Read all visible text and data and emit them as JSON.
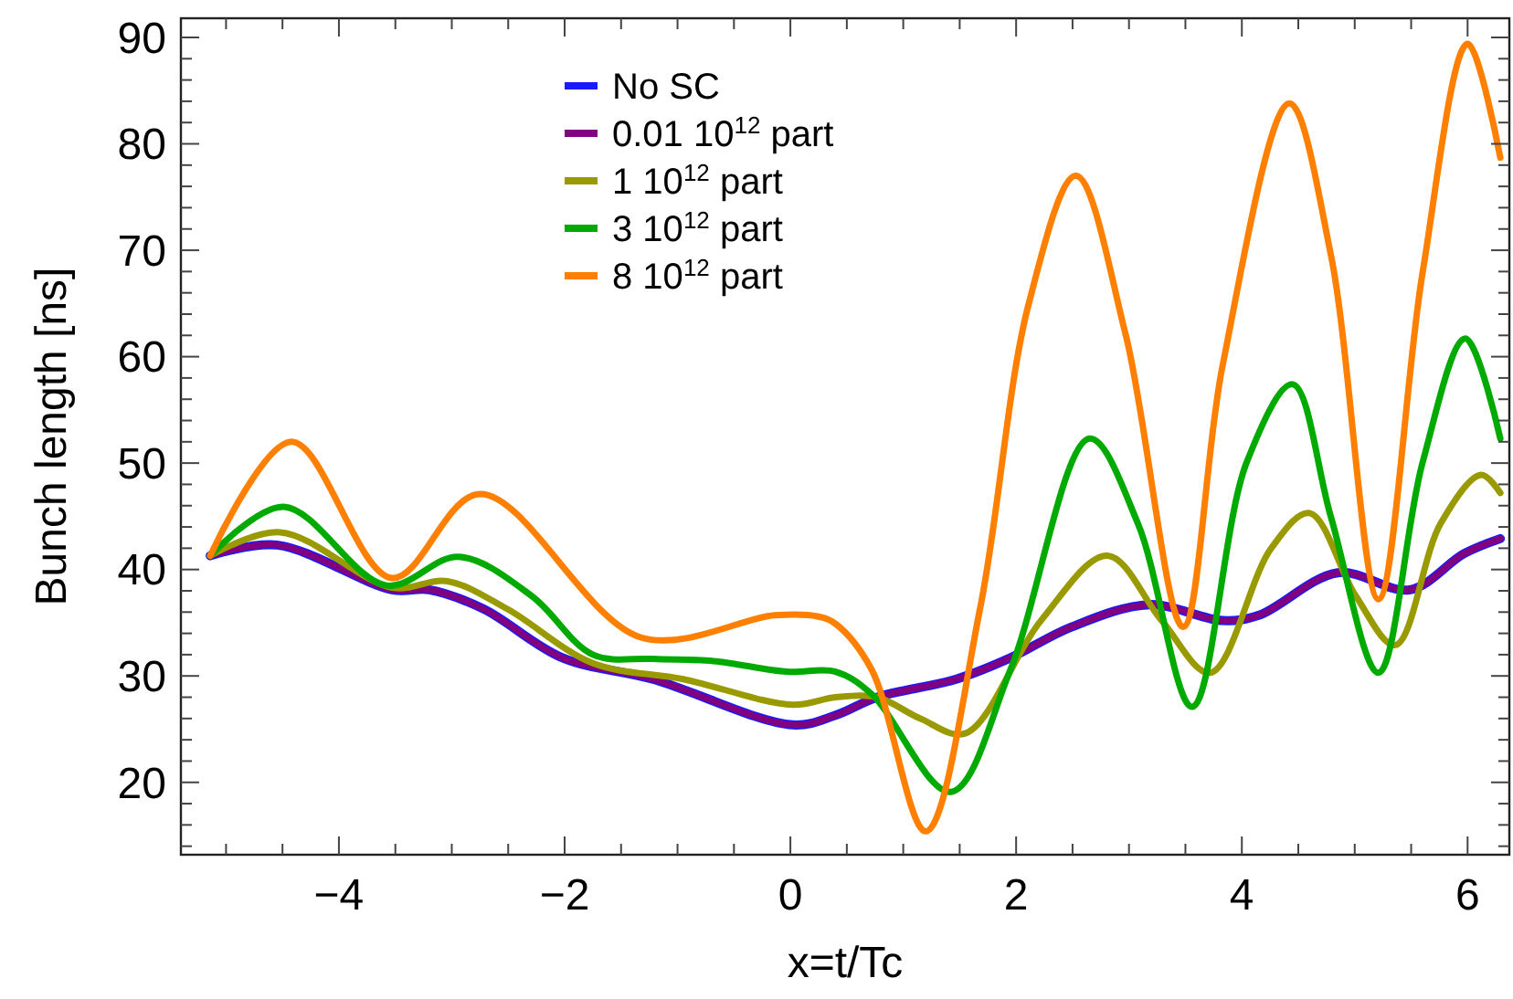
{
  "chart_data": {
    "type": "line",
    "xlabel": "x=t/Tc",
    "ylabel": "Bunch length [ns]",
    "xlim": [
      -5.4,
      6.37
    ],
    "ylim": [
      13.2,
      91.8
    ],
    "xticks": [
      {
        "value": -5,
        "label": null
      },
      {
        "value": -4.5,
        "label": null
      },
      -4,
      {
        "value": -3.5,
        "label": null
      },
      {
        "value": -3,
        "label": null
      },
      {
        "value": -2.5,
        "label": null
      },
      -2,
      {
        "value": -1.5,
        "label": null
      },
      {
        "value": -1,
        "label": null
      },
      {
        "value": -0.5,
        "label": null
      },
      0,
      {
        "value": 0.5,
        "label": null
      },
      {
        "value": 1,
        "label": null
      },
      {
        "value": 1.5,
        "label": null
      },
      2,
      {
        "value": 2.5,
        "label": null
      },
      {
        "value": 3,
        "label": null
      },
      {
        "value": 3.5,
        "label": null
      },
      4,
      {
        "value": 4.5,
        "label": null
      },
      {
        "value": 5,
        "label": null
      },
      {
        "value": 5.5,
        "label": null
      },
      6
    ],
    "yticks": [
      {
        "value": 14,
        "label": null
      },
      {
        "value": 16,
        "label": null
      },
      {
        "value": 18,
        "label": null
      },
      20,
      {
        "value": 22,
        "label": null
      },
      {
        "value": 24,
        "label": null
      },
      {
        "value": 26,
        "label": null
      },
      {
        "value": 28,
        "label": null
      },
      30,
      {
        "value": 32,
        "label": null
      },
      {
        "value": 34,
        "label": null
      },
      {
        "value": 36,
        "label": null
      },
      {
        "value": 38,
        "label": null
      },
      40,
      {
        "value": 42,
        "label": null
      },
      {
        "value": 44,
        "label": null
      },
      {
        "value": 46,
        "label": null
      },
      {
        "value": 48,
        "label": null
      },
      50,
      {
        "value": 52,
        "label": null
      },
      {
        "value": 54,
        "label": null
      },
      {
        "value": 56,
        "label": null
      },
      {
        "value": 58,
        "label": null
      },
      60,
      {
        "value": 62,
        "label": null
      },
      {
        "value": 64,
        "label": null
      },
      {
        "value": 66,
        "label": null
      },
      {
        "value": 68,
        "label": null
      },
      70,
      {
        "value": 72,
        "label": null
      },
      {
        "value": 74,
        "label": null
      },
      {
        "value": 76,
        "label": null
      },
      {
        "value": 78,
        "label": null
      },
      80,
      {
        "value": 82,
        "label": null
      },
      {
        "value": 84,
        "label": null
      },
      {
        "value": 86,
        "label": null
      },
      {
        "value": 88,
        "label": null
      },
      90
    ],
    "grid": false,
    "legend": "top left",
    "marker": "none",
    "line_style": "solid",
    "series": [
      {
        "name": "No SC",
        "color": "#1a1aff",
        "x": [
          -5.14,
          -4.55,
          -3.53,
          -3.2,
          -2.72,
          -2.02,
          -1.22,
          0.02,
          0.4,
          0.77,
          1.47,
          1.95,
          2.49,
          3.18,
          3.83,
          4.15,
          4.85,
          5.49,
          5.97,
          6.29
        ],
        "values": [
          41.3,
          42.3,
          38.1,
          38.1,
          36.3,
          31.7,
          29.7,
          25.4,
          26.3,
          28,
          29.7,
          31.7,
          34.6,
          36.7,
          35.2,
          35.7,
          39.7,
          38.1,
          41.5,
          42.9
        ]
      },
      {
        "name": "0.01 10$^{12}$ part",
        "color": "#800080",
        "x": [
          -5.14,
          -4.55,
          -3.53,
          -3.2,
          -2.72,
          -2.02,
          -1.22,
          0.02,
          0.4,
          0.77,
          1.47,
          1.95,
          2.49,
          3.18,
          3.83,
          4.15,
          4.85,
          5.49,
          5.97,
          6.29
        ],
        "values": [
          41.3,
          42.3,
          38.1,
          38.1,
          36.3,
          31.7,
          29.7,
          25.4,
          26.3,
          28,
          29.7,
          31.7,
          34.6,
          36.7,
          35.2,
          35.7,
          39.7,
          38.1,
          41.5,
          42.9
        ]
      },
      {
        "name": "1 10$^{12}$ part",
        "color": "#999900",
        "x": [
          -5.14,
          -4.52,
          -3.53,
          -3.04,
          -2.51,
          -1.75,
          -0.95,
          0.02,
          0.4,
          0.77,
          1.15,
          1.55,
          2.22,
          2.81,
          3.29,
          3.72,
          4.26,
          4.6,
          5.01,
          5.36,
          5.76,
          6.12,
          6.29
        ],
        "values": [
          41.3,
          43.5,
          38.3,
          38.9,
          36.3,
          31.2,
          29.7,
          27.3,
          28,
          28,
          26,
          24.6,
          35.2,
          41.3,
          35.2,
          30.3,
          42,
          45.3,
          37.5,
          32.9,
          44.3,
          48.9,
          47.2
        ]
      },
      {
        "name": "3 10$^{12}$ part",
        "color": "#00aa00",
        "x": [
          -5.14,
          -4.49,
          -3.58,
          -2.94,
          -2.29,
          -1.75,
          -1.22,
          -0.68,
          -0.03,
          0.4,
          0.72,
          1.42,
          1.95,
          2.65,
          3.08,
          3.56,
          4.04,
          4.45,
          4.79,
          5.21,
          5.6,
          5.98,
          6.29
        ],
        "values": [
          41.3,
          45.9,
          38.5,
          41.2,
          37.5,
          32,
          31.6,
          31.4,
          30.4,
          30.4,
          28.3,
          19.1,
          30.6,
          52.3,
          44.3,
          27.1,
          50,
          57.4,
          44.9,
          30.3,
          50,
          61.7,
          52.3
        ]
      },
      {
        "name": "8 10$^{12}$ part",
        "color": "#ff8000",
        "x": [
          -5.14,
          -4.42,
          -3.53,
          -2.75,
          -1.32,
          -0.14,
          0.24,
          0.4,
          0.72,
          1.2,
          1.68,
          2.11,
          2.53,
          2.97,
          3.48,
          3.83,
          4.42,
          4.79,
          5.21,
          5.6,
          6,
          6.29
        ],
        "values": [
          41.3,
          52,
          39.2,
          47.1,
          33.6,
          35.7,
          35.6,
          34.9,
          30.6,
          15.4,
          36.3,
          64.9,
          77,
          62.1,
          34.6,
          59.2,
          83.8,
          69.5,
          37.2,
          67.8,
          89.4,
          78.7
        ]
      }
    ]
  }
}
